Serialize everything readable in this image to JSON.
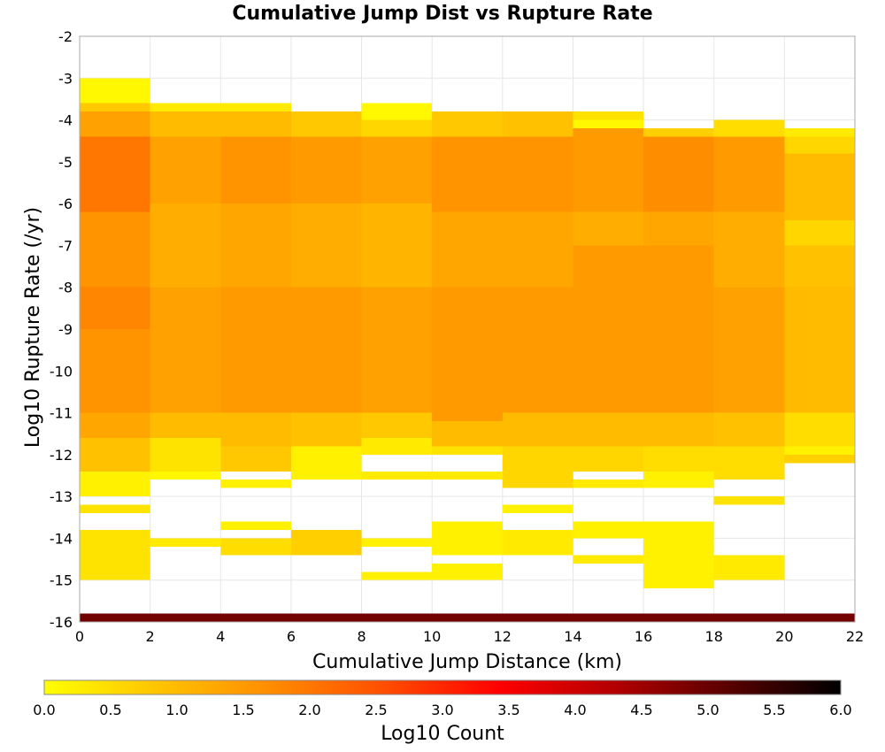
{
  "chart_data": {
    "type": "heatmap",
    "title": "Cumulative Jump Dist vs Rupture Rate",
    "xlabel": "Cumulative Jump Distance (km)",
    "ylabel": "Log10 Rupture Rate (/yr)",
    "xlim": [
      0,
      22
    ],
    "ylim": [
      -16,
      -2
    ],
    "x_ticks": [
      "0",
      "2",
      "4",
      "6",
      "8",
      "10",
      "12",
      "14",
      "16",
      "18",
      "20",
      "22"
    ],
    "y_ticks": [
      "-2",
      "-3",
      "-4",
      "-5",
      "-6",
      "-7",
      "-8",
      "-9",
      "-10",
      "-11",
      "-12",
      "-13",
      "-14",
      "-15",
      "-16"
    ],
    "x_bin_width": 2,
    "y_bin_height": 0.2,
    "grid": true,
    "colorbar": {
      "label": "Log10 Count",
      "range": [
        0,
        6
      ],
      "ticks": [
        "0.0",
        "0.5",
        "1.0",
        "1.5",
        "2.0",
        "2.5",
        "3.0",
        "3.5",
        "4.0",
        "4.5",
        "5.0",
        "5.5",
        "6.0"
      ],
      "colors": [
        "#ffff00",
        "#ffc400",
        "#ff8c00",
        "#ff4d00",
        "#ff0000",
        "#b40000",
        "#5a0000",
        "#000000"
      ]
    },
    "columns": [
      {
        "x_start": 0,
        "segments": [
          [
            -3.0,
            -3.6,
            0.1
          ],
          [
            -3.6,
            -3.8,
            0.8
          ],
          [
            -3.8,
            -4.4,
            1.4
          ],
          [
            -4.4,
            -6.2,
            2.0
          ],
          [
            -6.2,
            -8.0,
            1.6
          ],
          [
            -8.0,
            -9.0,
            1.8
          ],
          [
            -9.0,
            -11.0,
            1.6
          ],
          [
            -11.0,
            -11.6,
            1.3
          ],
          [
            -11.6,
            -12.4,
            0.9
          ],
          [
            -12.4,
            -13.0,
            0.2
          ],
          [
            -13.2,
            -13.4,
            0.4
          ],
          [
            -13.8,
            -15.0,
            0.4
          ],
          [
            -15.8,
            -16.0,
            4.9
          ]
        ]
      },
      {
        "x_start": 2,
        "segments": [
          [
            -3.6,
            -3.8,
            0.3
          ],
          [
            -3.8,
            -4.4,
            1.0
          ],
          [
            -4.4,
            -6.0,
            1.4
          ],
          [
            -6.0,
            -8.0,
            1.2
          ],
          [
            -8.0,
            -11.0,
            1.4
          ],
          [
            -11.0,
            -11.6,
            1.0
          ],
          [
            -11.6,
            -12.4,
            0.4
          ],
          [
            -12.4,
            -12.6,
            0.1
          ],
          [
            -14.0,
            -14.2,
            0.3
          ],
          [
            -15.8,
            -16.0,
            4.9
          ]
        ]
      },
      {
        "x_start": 4,
        "segments": [
          [
            -3.6,
            -3.8,
            0.3
          ],
          [
            -3.8,
            -4.4,
            1.0
          ],
          [
            -4.4,
            -6.0,
            1.6
          ],
          [
            -6.0,
            -8.0,
            1.3
          ],
          [
            -8.0,
            -11.0,
            1.5
          ],
          [
            -11.0,
            -11.8,
            1.0
          ],
          [
            -11.8,
            -12.4,
            0.8
          ],
          [
            -12.6,
            -12.8,
            0.2
          ],
          [
            -13.6,
            -13.8,
            0.2
          ],
          [
            -14.0,
            -14.4,
            0.5
          ],
          [
            -15.8,
            -16.0,
            4.9
          ]
        ]
      },
      {
        "x_start": 6,
        "segments": [
          [
            -3.8,
            -4.4,
            0.8
          ],
          [
            -4.4,
            -6.0,
            1.5
          ],
          [
            -6.0,
            -8.0,
            1.2
          ],
          [
            -8.0,
            -11.0,
            1.5
          ],
          [
            -11.0,
            -11.8,
            0.9
          ],
          [
            -11.8,
            -12.6,
            0.2
          ],
          [
            -13.8,
            -14.4,
            0.7
          ],
          [
            -15.8,
            -16.0,
            4.9
          ]
        ]
      },
      {
        "x_start": 8,
        "segments": [
          [
            -3.6,
            -4.0,
            0.1
          ],
          [
            -4.0,
            -4.4,
            0.6
          ],
          [
            -4.4,
            -6.0,
            1.4
          ],
          [
            -6.0,
            -8.0,
            1.1
          ],
          [
            -8.0,
            -11.0,
            1.4
          ],
          [
            -11.0,
            -11.6,
            0.8
          ],
          [
            -11.6,
            -12.0,
            0.3
          ],
          [
            -12.4,
            -12.6,
            0.3
          ],
          [
            -14.0,
            -14.2,
            0.2
          ],
          [
            -14.8,
            -15.0,
            0.2
          ],
          [
            -15.8,
            -16.0,
            4.9
          ]
        ]
      },
      {
        "x_start": 10,
        "segments": [
          [
            -3.8,
            -4.4,
            0.8
          ],
          [
            -4.4,
            -6.2,
            1.6
          ],
          [
            -6.2,
            -8.0,
            1.3
          ],
          [
            -8.0,
            -11.2,
            1.5
          ],
          [
            -11.2,
            -11.8,
            1.0
          ],
          [
            -11.8,
            -12.0,
            0.4
          ],
          [
            -12.4,
            -12.6,
            0.3
          ],
          [
            -13.6,
            -14.4,
            0.2
          ],
          [
            -14.6,
            -15.0,
            0.2
          ],
          [
            -15.8,
            -16.0,
            4.9
          ]
        ]
      },
      {
        "x_start": 12,
        "segments": [
          [
            -3.8,
            -4.4,
            0.9
          ],
          [
            -4.4,
            -6.2,
            1.6
          ],
          [
            -6.2,
            -8.0,
            1.3
          ],
          [
            -8.0,
            -11.0,
            1.5
          ],
          [
            -11.0,
            -11.8,
            1.0
          ],
          [
            -11.8,
            -12.8,
            0.6
          ],
          [
            -13.2,
            -13.4,
            0.2
          ],
          [
            -13.8,
            -14.4,
            0.3
          ],
          [
            -15.8,
            -16.0,
            4.9
          ]
        ]
      },
      {
        "x_start": 14,
        "segments": [
          [
            -3.8,
            -4.0,
            0.4
          ],
          [
            -4.0,
            -4.2,
            0.1
          ],
          [
            -4.2,
            -6.2,
            1.5
          ],
          [
            -6.2,
            -7.0,
            1.2
          ],
          [
            -7.0,
            -11.0,
            1.5
          ],
          [
            -11.0,
            -11.8,
            1.0
          ],
          [
            -11.8,
            -12.4,
            0.6
          ],
          [
            -12.6,
            -12.8,
            0.3
          ],
          [
            -13.6,
            -14.0,
            0.2
          ],
          [
            -14.4,
            -14.6,
            0.3
          ],
          [
            -15.8,
            -16.0,
            4.9
          ]
        ]
      },
      {
        "x_start": 16,
        "segments": [
          [
            -4.2,
            -4.4,
            0.7
          ],
          [
            -4.4,
            -6.2,
            1.7
          ],
          [
            -6.2,
            -7.0,
            1.3
          ],
          [
            -7.0,
            -11.0,
            1.5
          ],
          [
            -11.0,
            -11.8,
            1.0
          ],
          [
            -11.8,
            -12.4,
            0.5
          ],
          [
            -12.4,
            -12.8,
            0.2
          ],
          [
            -13.6,
            -15.2,
            0.2
          ],
          [
            -15.8,
            -16.0,
            4.9
          ]
        ]
      },
      {
        "x_start": 18,
        "segments": [
          [
            -4.0,
            -4.4,
            0.5
          ],
          [
            -4.4,
            -6.2,
            1.5
          ],
          [
            -6.2,
            -8.0,
            1.2
          ],
          [
            -8.0,
            -11.0,
            1.4
          ],
          [
            -11.0,
            -11.8,
            0.9
          ],
          [
            -11.8,
            -12.6,
            0.5
          ],
          [
            -13.0,
            -13.2,
            0.4
          ],
          [
            -14.4,
            -15.0,
            0.3
          ],
          [
            -15.8,
            -16.0,
            4.9
          ]
        ]
      },
      {
        "x_start": 20,
        "segments": [
          [
            -4.2,
            -4.4,
            0.3
          ],
          [
            -4.4,
            -4.8,
            0.6
          ],
          [
            -4.8,
            -6.4,
            1.0
          ],
          [
            -6.4,
            -7.0,
            0.6
          ],
          [
            -7.0,
            -8.0,
            0.9
          ],
          [
            -8.0,
            -11.0,
            1.0
          ],
          [
            -11.0,
            -11.8,
            0.5
          ],
          [
            -11.8,
            -12.0,
            0.2
          ],
          [
            -12.0,
            -12.2,
            0.7
          ],
          [
            -15.8,
            -16.0,
            4.9
          ]
        ]
      }
    ]
  }
}
